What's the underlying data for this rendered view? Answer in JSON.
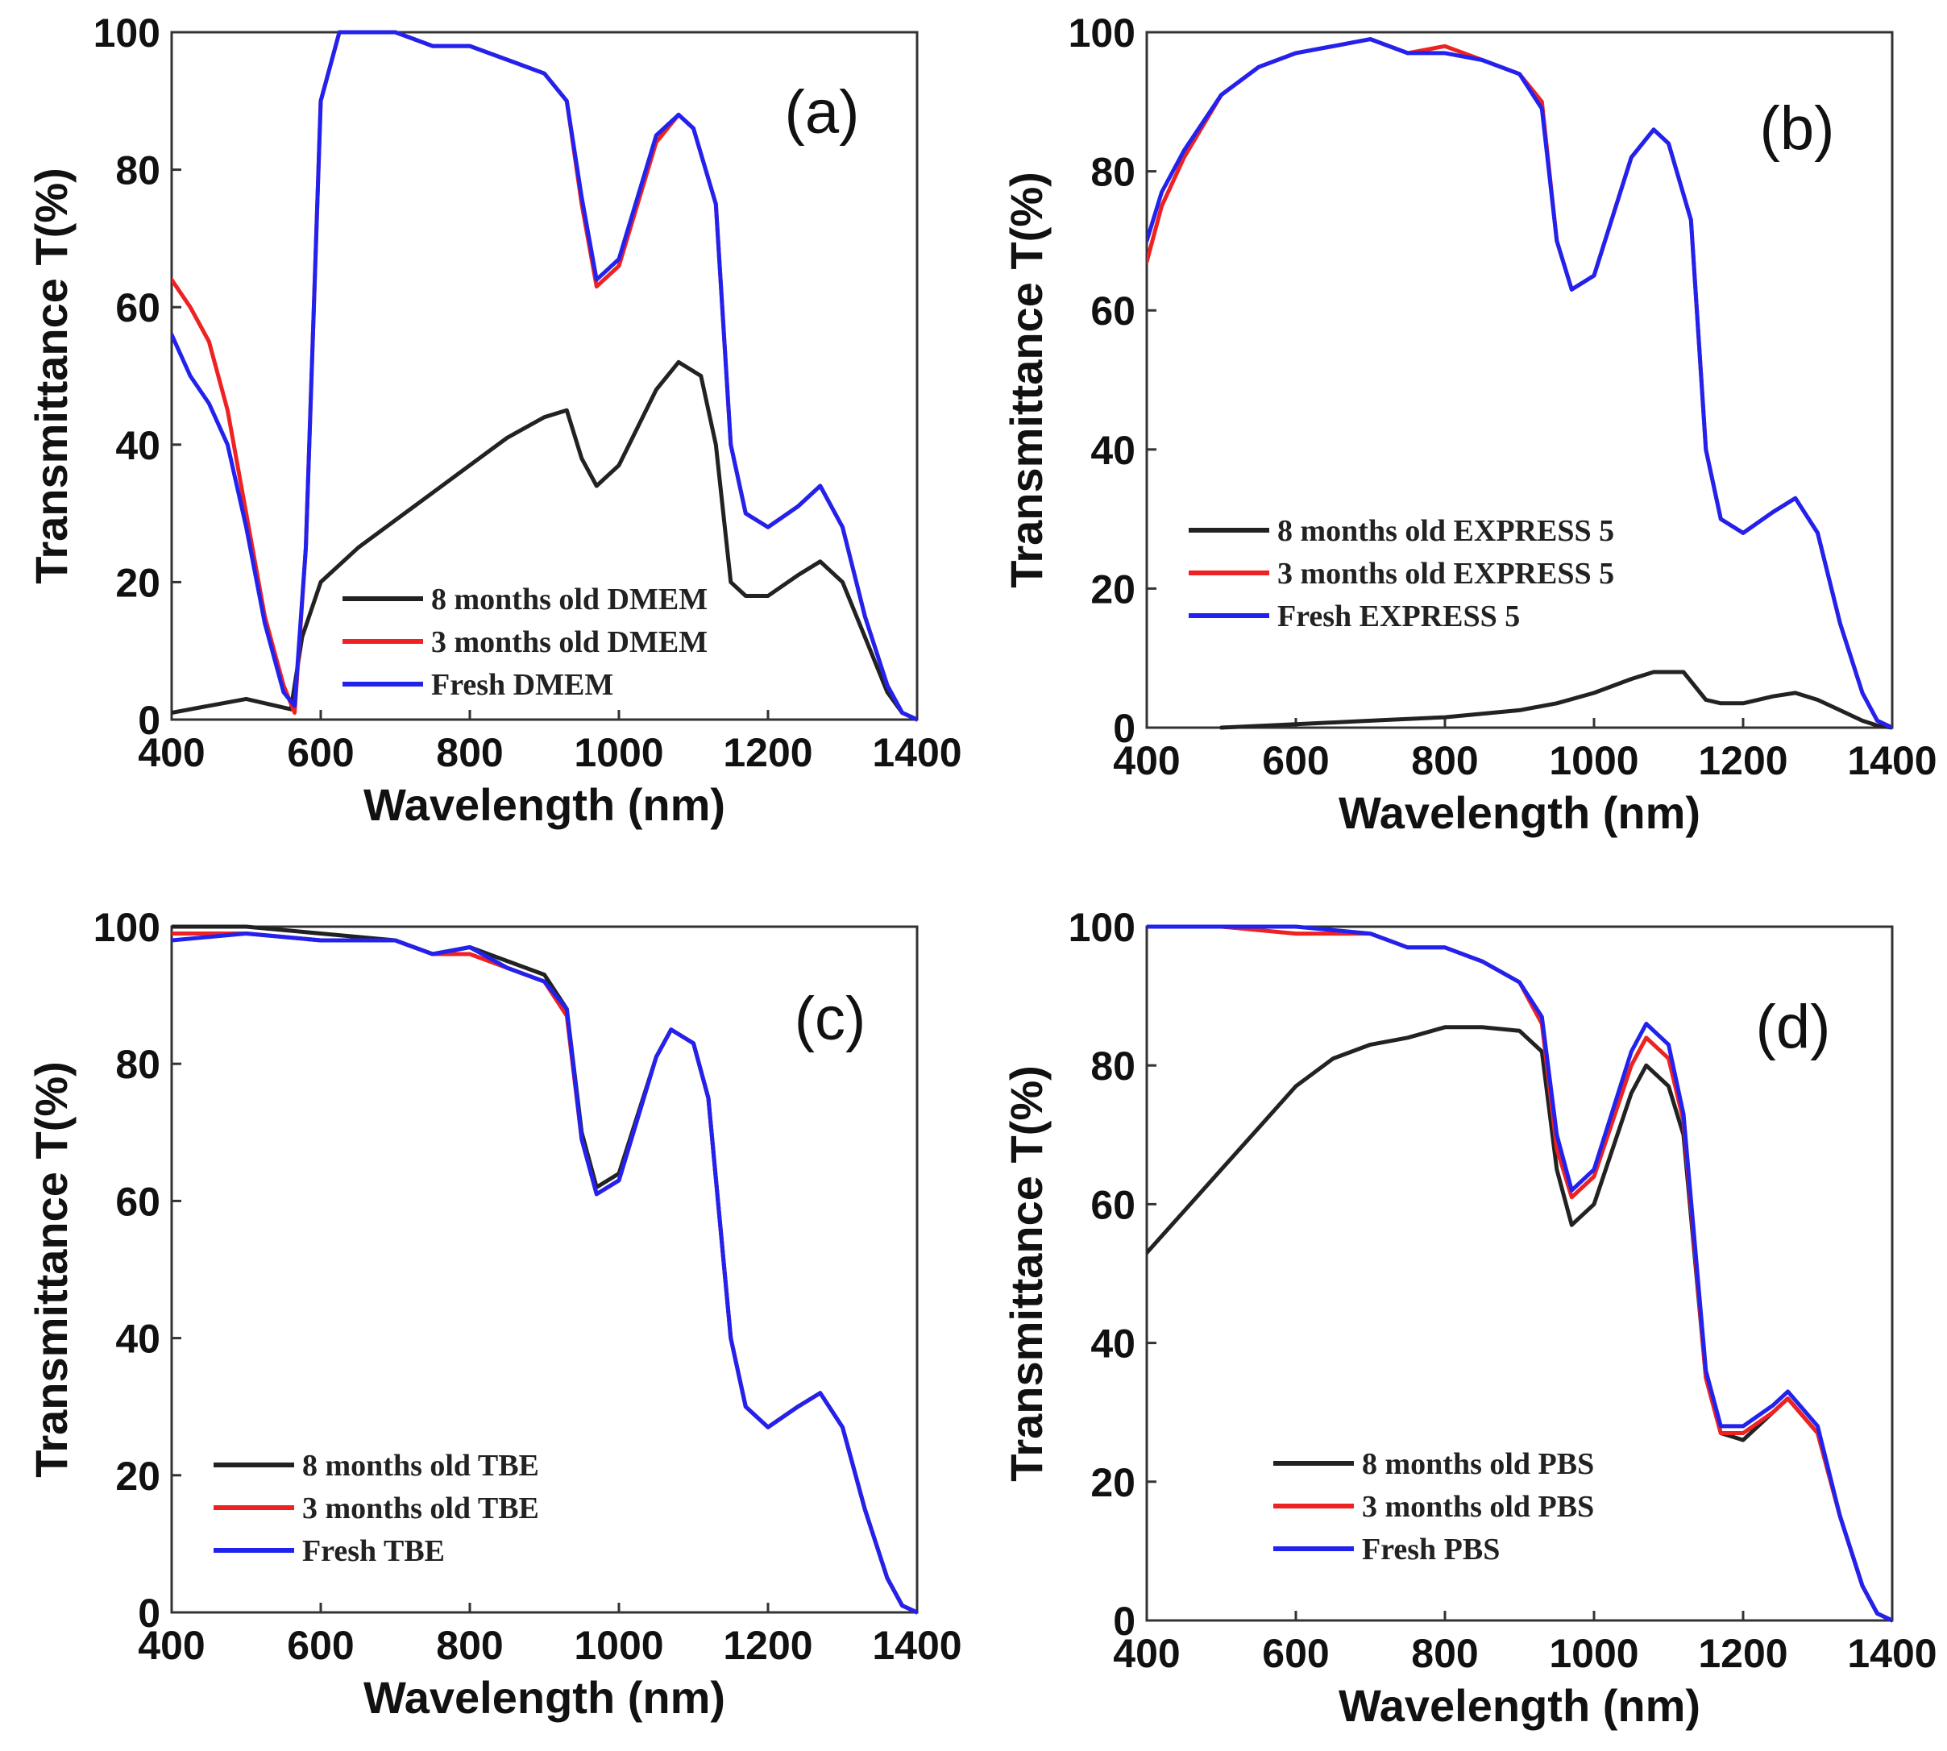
{
  "chart_data": [
    {
      "type": "line",
      "panel_label": "(a)",
      "xlabel": "Wavelength (nm)",
      "ylabel": "Transmittance T(%)",
      "xlim": [
        400,
        1400
      ],
      "ylim": [
        0,
        100
      ],
      "xticks": [
        "400",
        "600",
        "800",
        "1000",
        "1200",
        "1400"
      ],
      "yticks": [
        "0",
        "20",
        "40",
        "60",
        "80",
        "100"
      ],
      "legend_position": "bottom-center",
      "series": [
        {
          "name": "8 months old DMEM",
          "color": "#222222",
          "x": [
            400,
            450,
            500,
            540,
            560,
            575,
            600,
            650,
            700,
            750,
            800,
            850,
            900,
            930,
            950,
            970,
            1000,
            1050,
            1080,
            1110,
            1130,
            1150,
            1170,
            1200,
            1240,
            1270,
            1300,
            1330,
            1360,
            1380,
            1400
          ],
          "y": [
            1,
            2,
            3,
            2,
            1.5,
            12,
            20,
            25,
            29,
            33,
            37,
            41,
            44,
            45,
            38,
            34,
            37,
            48,
            52,
            50,
            40,
            20,
            18,
            18,
            21,
            23,
            20,
            12,
            4,
            1,
            0
          ]
        },
        {
          "name": "3 months old DMEM",
          "color": "#ee2222",
          "x": [
            400,
            425,
            450,
            475,
            500,
            525,
            550,
            565,
            580,
            600,
            625,
            650,
            700,
            750,
            800,
            850,
            900,
            930,
            950,
            970,
            1000,
            1050,
            1080,
            1100,
            1130,
            1150,
            1170,
            1200,
            1240,
            1270,
            1300,
            1330,
            1360,
            1380,
            1400
          ],
          "y": [
            64,
            60,
            55,
            45,
            30,
            15,
            5,
            1,
            25,
            90,
            100,
            100,
            100,
            98,
            98,
            96,
            94,
            90,
            75,
            63,
            66,
            84,
            88,
            86,
            75,
            40,
            30,
            28,
            31,
            34,
            28,
            15,
            5,
            1,
            0
          ]
        },
        {
          "name": "Fresh DMEM",
          "color": "#2222ee",
          "x": [
            400,
            425,
            450,
            475,
            500,
            525,
            550,
            565,
            580,
            600,
            625,
            650,
            700,
            750,
            800,
            850,
            900,
            930,
            950,
            970,
            1000,
            1050,
            1080,
            1100,
            1130,
            1150,
            1170,
            1200,
            1240,
            1270,
            1300,
            1330,
            1360,
            1380,
            1400
          ],
          "y": [
            56,
            50,
            46,
            40,
            28,
            14,
            4,
            2,
            25,
            90,
            100,
            100,
            100,
            98,
            98,
            96,
            94,
            90,
            76,
            64,
            67,
            85,
            88,
            86,
            75,
            40,
            30,
            28,
            31,
            34,
            28,
            15,
            5,
            1,
            0
          ]
        }
      ]
    },
    {
      "type": "line",
      "panel_label": "(b)",
      "xlabel": "Wavelength (nm)",
      "ylabel": "Transmittance T(%)",
      "xlim": [
        400,
        1400
      ],
      "ylim": [
        0,
        100
      ],
      "xticks": [
        "400",
        "600",
        "800",
        "1000",
        "1200",
        "1400"
      ],
      "yticks": [
        "0",
        "20",
        "40",
        "60",
        "80",
        "100"
      ],
      "legend_position": "center-left",
      "series": [
        {
          "name": "8 months old EXPRESS 5",
          "color": "#222222",
          "x": [
            500,
            600,
            700,
            800,
            900,
            950,
            1000,
            1050,
            1080,
            1120,
            1150,
            1170,
            1200,
            1240,
            1270,
            1300,
            1330,
            1360,
            1380,
            1400
          ],
          "y": [
            0,
            0.5,
            1,
            1.5,
            2.5,
            3.5,
            5,
            7,
            8,
            8,
            4,
            3.5,
            3.5,
            4.5,
            5,
            4,
            2.5,
            1,
            0.3,
            0
          ]
        },
        {
          "name": "3 months old EXPRESS 5",
          "color": "#ee2222",
          "x": [
            400,
            420,
            450,
            500,
            550,
            600,
            650,
            700,
            750,
            800,
            850,
            900,
            930,
            950,
            970,
            1000,
            1050,
            1080,
            1100,
            1130,
            1150,
            1170,
            1200,
            1240,
            1270,
            1300,
            1330,
            1360,
            1380,
            1400
          ],
          "y": [
            67,
            75,
            82,
            91,
            95,
            97,
            98,
            99,
            97,
            98,
            96,
            94,
            90,
            70,
            63,
            65,
            82,
            86,
            84,
            73,
            40,
            30,
            28,
            31,
            33,
            28,
            15,
            5,
            1,
            0
          ]
        },
        {
          "name": "Fresh EXPRESS 5",
          "color": "#2222ee",
          "x": [
            400,
            420,
            450,
            500,
            550,
            600,
            650,
            700,
            750,
            800,
            850,
            900,
            930,
            950,
            970,
            1000,
            1050,
            1080,
            1100,
            1130,
            1150,
            1170,
            1200,
            1240,
            1270,
            1300,
            1330,
            1360,
            1380,
            1400
          ],
          "y": [
            70,
            77,
            83,
            91,
            95,
            97,
            98,
            99,
            97,
            97,
            96,
            94,
            89,
            70,
            63,
            65,
            82,
            86,
            84,
            73,
            40,
            30,
            28,
            31,
            33,
            28,
            15,
            5,
            1,
            0
          ]
        }
      ]
    },
    {
      "type": "line",
      "panel_label": "(c)",
      "xlabel": "Wavelength (nm)",
      "ylabel": "Transmittance T(%)",
      "xlim": [
        400,
        1400
      ],
      "ylim": [
        0,
        100
      ],
      "xticks": [
        "400",
        "600",
        "800",
        "1000",
        "1200",
        "1400"
      ],
      "yticks": [
        "0",
        "20",
        "40",
        "60",
        "80",
        "100"
      ],
      "legend_position": "bottom-left",
      "series": [
        {
          "name": "8 months old TBE",
          "color": "#222222",
          "x": [
            400,
            500,
            600,
            700,
            750,
            800,
            850,
            900,
            930,
            950,
            970,
            1000,
            1050,
            1070,
            1100,
            1120,
            1150,
            1170,
            1200,
            1240,
            1270,
            1300,
            1330,
            1360,
            1380,
            1400
          ],
          "y": [
            100,
            100,
            99,
            98,
            96,
            97,
            95,
            93,
            88,
            70,
            62,
            64,
            81,
            85,
            83,
            75,
            40,
            30,
            27,
            30,
            32,
            27,
            15,
            5,
            1,
            0
          ]
        },
        {
          "name": "3 months old TBE",
          "color": "#ee2222",
          "x": [
            400,
            500,
            600,
            700,
            750,
            800,
            850,
            900,
            930,
            950,
            970,
            1000,
            1050,
            1070,
            1100,
            1120,
            1150,
            1170,
            1200,
            1240,
            1270,
            1300,
            1330,
            1360,
            1380,
            1400
          ],
          "y": [
            99,
            99,
            98,
            98,
            96,
            96,
            94,
            92,
            87,
            69,
            61,
            63,
            81,
            85,
            83,
            75,
            40,
            30,
            27,
            30,
            32,
            27,
            15,
            5,
            1,
            0
          ]
        },
        {
          "name": "Fresh TBE",
          "color": "#2222ee",
          "x": [
            400,
            500,
            600,
            700,
            750,
            800,
            850,
            900,
            930,
            950,
            970,
            1000,
            1050,
            1070,
            1100,
            1120,
            1150,
            1170,
            1200,
            1240,
            1270,
            1300,
            1330,
            1360,
            1380,
            1400
          ],
          "y": [
            98,
            99,
            98,
            98,
            96,
            97,
            94,
            92,
            88,
            69,
            61,
            63,
            81,
            85,
            83,
            75,
            40,
            30,
            27,
            30,
            32,
            27,
            15,
            5,
            1,
            0
          ]
        }
      ]
    },
    {
      "type": "line",
      "panel_label": "(d)",
      "xlabel": "Wavelength (nm)",
      "ylabel": "Transmittance T(%)",
      "xlim": [
        400,
        1400
      ],
      "ylim": [
        0,
        100
      ],
      "xticks": [
        "400",
        "600",
        "800",
        "1000",
        "1200",
        "1400"
      ],
      "yticks": [
        "0",
        "20",
        "40",
        "60",
        "80",
        "100"
      ],
      "legend_position": "bottom-center",
      "series": [
        {
          "name": "8 months old PBS",
          "color": "#222222",
          "x": [
            400,
            450,
            500,
            550,
            600,
            650,
            700,
            750,
            800,
            850,
            900,
            930,
            950,
            970,
            1000,
            1050,
            1070,
            1100,
            1120,
            1150,
            1170,
            1200,
            1240,
            1260,
            1300,
            1330,
            1360,
            1380,
            1400
          ],
          "y": [
            53,
            59,
            65,
            71,
            77,
            81,
            83,
            84,
            85.5,
            85.5,
            85,
            82,
            65,
            57,
            60,
            76,
            80,
            77,
            70,
            35,
            27,
            26,
            30,
            32,
            27,
            15,
            5,
            1,
            0
          ]
        },
        {
          "name": "3 months old PBS",
          "color": "#ee2222",
          "x": [
            400,
            500,
            600,
            700,
            750,
            800,
            850,
            900,
            930,
            950,
            970,
            1000,
            1050,
            1070,
            1100,
            1120,
            1150,
            1170,
            1200,
            1240,
            1260,
            1300,
            1330,
            1360,
            1380,
            1400
          ],
          "y": [
            100,
            100,
            99,
            99,
            97,
            97,
            95,
            92,
            86,
            68,
            61,
            64,
            80,
            84,
            81,
            72,
            35,
            27,
            27,
            30,
            32,
            27,
            15,
            5,
            1,
            0
          ]
        },
        {
          "name": "Fresh PBS",
          "color": "#2222ee",
          "x": [
            400,
            500,
            600,
            700,
            750,
            800,
            850,
            900,
            930,
            950,
            970,
            1000,
            1050,
            1070,
            1100,
            1120,
            1150,
            1170,
            1200,
            1240,
            1260,
            1300,
            1330,
            1360,
            1380,
            1400
          ],
          "y": [
            100,
            100,
            100,
            99,
            97,
            97,
            95,
            92,
            87,
            70,
            62,
            65,
            82,
            86,
            83,
            73,
            36,
            28,
            28,
            31,
            33,
            28,
            15,
            5,
            1,
            0
          ]
        }
      ]
    }
  ]
}
